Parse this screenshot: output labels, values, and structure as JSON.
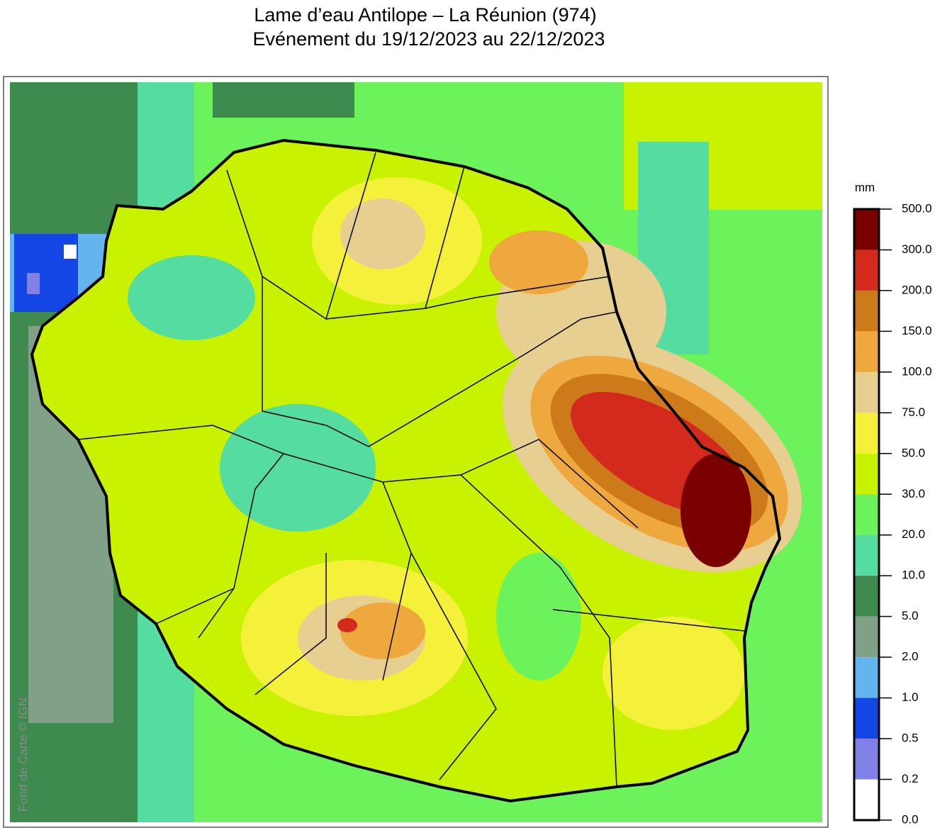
{
  "header": {
    "title": "Lame d’eau Antilope – La Réunion (974)",
    "subtitle": "Evénement du 19/12/2023 au 22/12/2023"
  },
  "map": {
    "attribution": "Fond de Carte © IGN"
  },
  "legend": {
    "unit": "mm",
    "ticks": [
      "500.0",
      "300.0",
      "200.0",
      "150.0",
      "100.0",
      "75.0",
      "50.0",
      "30.0",
      "20.0",
      "10.0",
      "5.0",
      "2.0",
      "1.0",
      "0.5",
      "0.2",
      "0.0"
    ],
    "colors": [
      "#7a0000",
      "#d42a1e",
      "#cc7a1a",
      "#eea83e",
      "#e6cf90",
      "#f5f03a",
      "#c8f200",
      "#6cf25a",
      "#55dca0",
      "#3f8a4e",
      "#80a088",
      "#64b4f0",
      "#1446e6",
      "#8080e6",
      "#ffffff"
    ]
  }
}
